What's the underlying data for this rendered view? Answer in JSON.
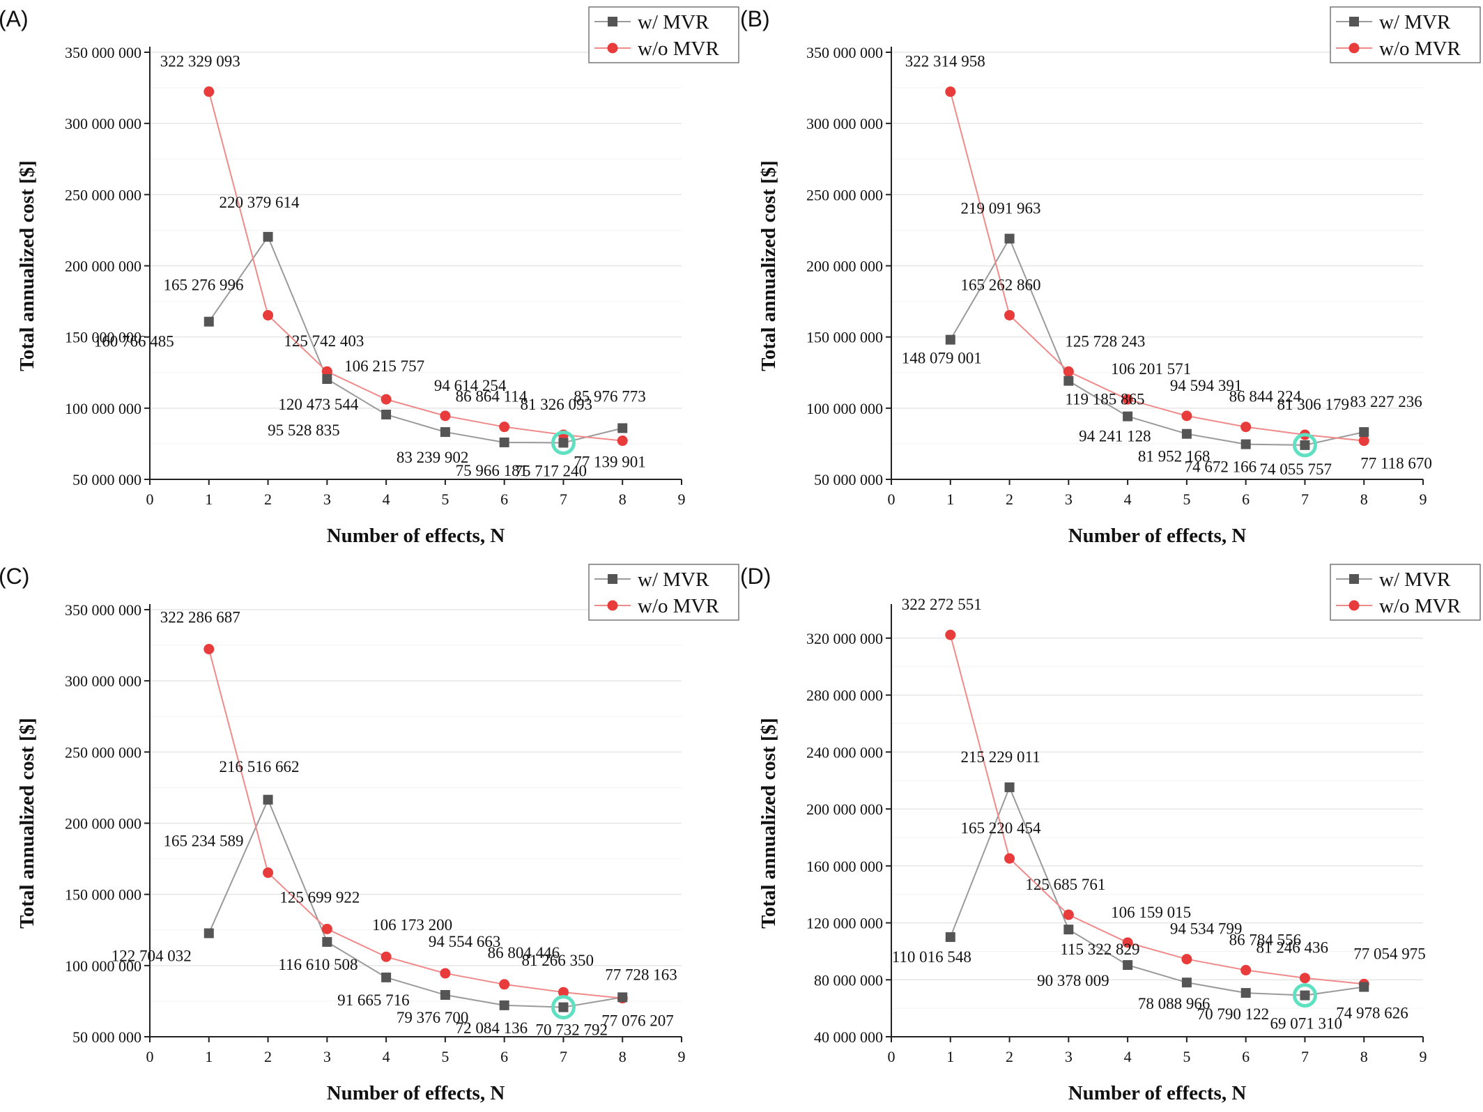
{
  "colors": {
    "mvr": "#555555",
    "mvr_line": "#9a9a9a",
    "no_mvr": "#e83b3b",
    "no_mvr_line": "#f08a8a",
    "highlight": "#5fe0c0",
    "grid": "#e6e6e6"
  },
  "chart_data": [
    {
      "panel": "(A)",
      "type": "line",
      "xlabel": "Number of effects, N",
      "ylabel": "Total annualized cost [$]",
      "xlim": [
        0,
        9
      ],
      "xticks": [
        0,
        1,
        2,
        3,
        4,
        5,
        6,
        7,
        8,
        9
      ],
      "ylim": [
        50000000,
        350000000
      ],
      "yticks": [
        50000000,
        100000000,
        150000000,
        200000000,
        250000000,
        300000000,
        350000000
      ],
      "ytick_labels": [
        "50 000 000",
        "100 000 000",
        "150 000 000",
        "200 000 000",
        "250 000 000",
        "300 000 000",
        "350 000 000"
      ],
      "x": [
        1,
        2,
        3,
        4,
        5,
        6,
        7,
        8
      ],
      "highlight_x": 7,
      "series": [
        {
          "name": "w/ MVR",
          "values": [
            160766485,
            220379614,
            120473544,
            95528835,
            83239902,
            75966181,
            75717240,
            85976773
          ],
          "labels": [
            "160 766 485",
            "220 379 614",
            "120 473 544",
            "95 528 835",
            "83 239 902",
            "75 966 181",
            "75 717 240",
            "85 976 773"
          ]
        },
        {
          "name": "w/o MVR",
          "values": [
            322329093,
            165276996,
            125742403,
            106215757,
            94614254,
            86864114,
            81326093,
            77139901
          ],
          "labels": [
            "322 329 093",
            "165 276 996",
            "125 742 403",
            "106 215 757",
            "94 614 254",
            "86 864 114",
            "81 326 093",
            "77 139 901"
          ]
        }
      ]
    },
    {
      "panel": "(B)",
      "type": "line",
      "xlabel": "Number of effects, N",
      "ylabel": "Total annualized cost [$]",
      "xlim": [
        0,
        9
      ],
      "xticks": [
        0,
        1,
        2,
        3,
        4,
        5,
        6,
        7,
        8,
        9
      ],
      "ylim": [
        50000000,
        350000000
      ],
      "yticks": [
        50000000,
        100000000,
        150000000,
        200000000,
        250000000,
        300000000,
        350000000
      ],
      "ytick_labels": [
        "50 000 000",
        "100 000 000",
        "150 000 000",
        "200 000 000",
        "250 000 000",
        "300 000 000",
        "350 000 000"
      ],
      "x": [
        1,
        2,
        3,
        4,
        5,
        6,
        7,
        8
      ],
      "highlight_x": 7,
      "series": [
        {
          "name": "w/ MVR",
          "values": [
            148079001,
            219091963,
            119185865,
            94241128,
            81952168,
            74672166,
            74055757,
            83227236
          ],
          "labels": [
            "148 079 001",
            "219 091 963",
            "119 185 865",
            "94 241 128",
            "81 952 168",
            "74 672 166",
            "74 055 757",
            "83 227 236"
          ]
        },
        {
          "name": "w/o MVR",
          "values": [
            322314958,
            165262860,
            125728243,
            106201571,
            94594391,
            86844224,
            81306179,
            77118670
          ],
          "labels": [
            "322 314 958",
            "165 262 860",
            "125 728 243",
            "106 201 571",
            "94 594 391",
            "86 844 224",
            "81 306 179",
            "77 118 670"
          ]
        }
      ]
    },
    {
      "panel": "(C)",
      "type": "line",
      "xlabel": "Number of effects, N",
      "ylabel": "Total annualized cost [$]",
      "xlim": [
        0,
        9
      ],
      "xticks": [
        0,
        1,
        2,
        3,
        4,
        5,
        6,
        7,
        8,
        9
      ],
      "ylim": [
        50000000,
        350000000
      ],
      "yticks": [
        50000000,
        100000000,
        150000000,
        200000000,
        250000000,
        300000000,
        350000000
      ],
      "ytick_labels": [
        "50 000 000",
        "100 000 000",
        "150 000 000",
        "200 000 000",
        "250 000 000",
        "300 000 000",
        "350 000 000"
      ],
      "x": [
        1,
        2,
        3,
        4,
        5,
        6,
        7,
        8
      ],
      "highlight_x": 7,
      "series": [
        {
          "name": "w/ MVR",
          "values": [
            122704032,
            216516662,
            116610508,
            91665716,
            79376700,
            72084136,
            70732792,
            77728163
          ],
          "labels": [
            "122 704 032",
            "216 516 662",
            "116 610 508",
            "91 665 716",
            "79 376 700",
            "72 084 136",
            "70 732 792",
            "77 728 163"
          ]
        },
        {
          "name": "w/o MVR",
          "values": [
            322286687,
            165234589,
            125699922,
            106173200,
            94554663,
            86804446,
            81266350,
            77076207
          ],
          "labels": [
            "322 286 687",
            "165 234 589",
            "125 699 922",
            "106 173 200",
            "94 554 663",
            "86 804 446",
            "81 266 350",
            "77 076 207"
          ]
        }
      ]
    },
    {
      "panel": "(D)",
      "type": "line",
      "xlabel": "Number of effects, N",
      "ylabel": "Total annualized cost [$]",
      "xlim": [
        0,
        9
      ],
      "xticks": [
        0,
        1,
        2,
        3,
        4,
        5,
        6,
        7,
        8,
        9
      ],
      "ylim": [
        40000000,
        340000000
      ],
      "yticks": [
        40000000,
        80000000,
        120000000,
        160000000,
        200000000,
        240000000,
        280000000,
        320000000
      ],
      "ytick_labels": [
        "40 000 000",
        "80 000 000",
        "120 000 000",
        "160 000 000",
        "200 000 000",
        "240 000 000",
        "280 000 000",
        "320 000 000"
      ],
      "x": [
        1,
        2,
        3,
        4,
        5,
        6,
        7,
        8
      ],
      "highlight_x": 7,
      "series": [
        {
          "name": "w/ MVR",
          "values": [
            110016548,
            215229011,
            115322829,
            90378009,
            78088966,
            70790122,
            69071310,
            74978626
          ],
          "labels": [
            "110 016 548",
            "215 229 011",
            "115 322 829",
            "90 378 009",
            "78 088 966",
            "70 790 122",
            "69 071 310",
            "74 978 626"
          ]
        },
        {
          "name": "w/o MVR",
          "values": [
            322272551,
            165220454,
            125685761,
            106159015,
            94534799,
            86784556,
            81246436,
            77054975
          ],
          "labels": [
            "322 272 551",
            "165 220 454",
            "125 685 761",
            "106 159 015",
            "94 534 799",
            "86 784 556",
            "81 246 436",
            "77 054 975"
          ]
        }
      ]
    }
  ]
}
